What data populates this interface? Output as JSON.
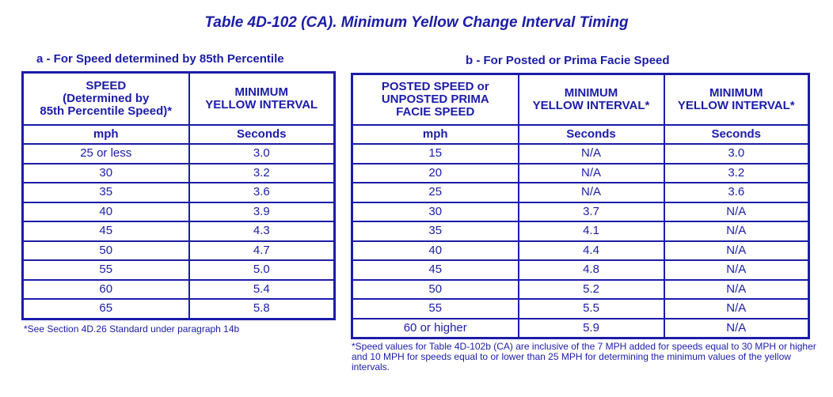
{
  "title": "Table 4D-102 (CA). Minimum Yellow Change Interval Timing",
  "table_a": {
    "subtitle": "a - For Speed determined by 85th Percentile",
    "headers": [
      "SPEED\n(Determined by\n85th Percentile Speed)*",
      "MINIMUM\nYELLOW INTERVAL"
    ],
    "units": [
      "mph",
      "Seconds"
    ],
    "rows": [
      [
        "25 or less",
        "3.0"
      ],
      [
        "30",
        "3.2"
      ],
      [
        "35",
        "3.6"
      ],
      [
        "40",
        "3.9"
      ],
      [
        "45",
        "4.3"
      ],
      [
        "50",
        "4.7"
      ],
      [
        "55",
        "5.0"
      ],
      [
        "60",
        "5.4"
      ],
      [
        "65",
        "5.8"
      ]
    ],
    "note": "*See Section 4D.26 Standard under paragraph 14b"
  },
  "table_b": {
    "subtitle": "b - For Posted or Prima Facie Speed",
    "headers": [
      "POSTED SPEED or\nUNPOSTED PRIMA\nFACIE SPEED",
      "MINIMUM\nYELLOW INTERVAL*",
      "MINIMUM\nYELLOW INTERVAL*"
    ],
    "units": [
      "mph",
      "Seconds",
      "Seconds"
    ],
    "rows": [
      [
        "15",
        "N/A",
        "3.0"
      ],
      [
        "20",
        "N/A",
        "3.2"
      ],
      [
        "25",
        "N/A",
        "3.6"
      ],
      [
        "30",
        "3.7",
        "N/A"
      ],
      [
        "35",
        "4.1",
        "N/A"
      ],
      [
        "40",
        "4.4",
        "N/A"
      ],
      [
        "45",
        "4.8",
        "N/A"
      ],
      [
        "50",
        "5.2",
        "N/A"
      ],
      [
        "55",
        "5.5",
        "N/A"
      ],
      [
        "60 or higher",
        "5.9",
        "N/A"
      ]
    ],
    "note": "*Speed values for Table 4D-102b (CA) are inclusive of the 7 MPH added for speeds equal to 30 MPH or higher and 10 MPH for speeds equal to or lower than 25 MPH for determining the minimum values of the yellow intervals."
  },
  "colors": {
    "ink": "#1c1ca8",
    "background": "#ffffff"
  }
}
